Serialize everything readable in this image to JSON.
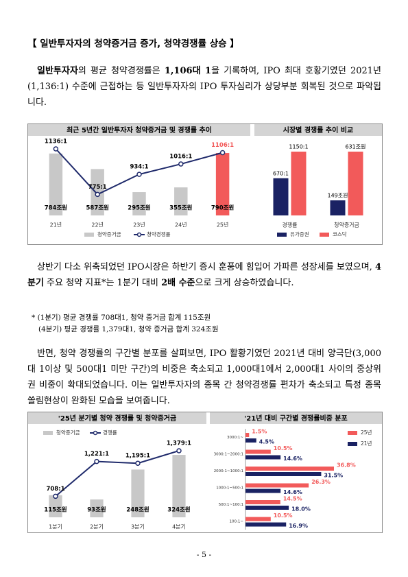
{
  "heading": "【 일반투자자의 청약증거금 증가, 청약경쟁률 상승 】",
  "paragraphs": [
    [
      {
        "text": "일반투자자",
        "bold": true
      },
      {
        "text": "의 평균 청약경쟁률은 "
      },
      {
        "text": "1,106대 1",
        "bold": true
      },
      {
        "text": "을 기록하여, IPO 최대 호황기였던 2021년(1,136:1) 수준에 근접하는 등 일반투자자의 IPO 투자심리가 상당부분 회복된 것으로 파악됩니다."
      }
    ],
    [
      {
        "text": "상반기 다소 위축되었던 IPO시장은 하반기 증시 훈풍에 힘입어 가파른 성장세를 보였으며, "
      },
      {
        "text": "4분기",
        "bold": true
      },
      {
        "text": " 주요 청약 지표*는 1분기 대비 "
      },
      {
        "text": "2배 수준",
        "bold": true
      },
      {
        "text": "으로 크게 상승하였습니다."
      }
    ],
    [
      {
        "text": "반면, 청약 경쟁률의 구간별 분포를 살펴보면, IPO 활황기였던 2021년 대비 양극단(3,000대 1이상 및 500대1 미만 구간)의 비중은 축소되고 1,000대1에서 2,000대1 사이의 중상위권 비중이 확대되었습니다. 이는 일반투자자의 종목 간 청약경쟁률 편차가 축소되고 특정 종목 쏠림현상이 완화된 모습을 보여줍니다."
      }
    ]
  ],
  "footnote": [
    "* (1분기) 평균 경쟁률 708대1, 청약 증거금 합계 115조원",
    "(4분기) 평균 경쟁률 1,379대1, 청약 증거금 합계 324조원"
  ],
  "charts": [
    {
      "type": "combo",
      "title": "최근 5년간 일반투자자 청약증거금 및 경쟁률 추이",
      "legend": "bottom",
      "categories": [
        "21년",
        "22년",
        "23년",
        "24년",
        "25년"
      ],
      "series": [
        {
          "name": "청약증거금",
          "type": "bar",
          "colors": [
            "#c8c8c8",
            "#c8c8c8",
            "#c8c8c8",
            "#c8c8c8",
            "#f25a5a"
          ],
          "values": [
            784,
            587,
            295,
            355,
            790
          ],
          "value_labels": [
            "784조원",
            "587조원",
            "295조원",
            "355조원",
            "790조원"
          ]
        },
        {
          "name": "청약경쟁률",
          "type": "line",
          "color": "#1f2a6b",
          "values": [
            1136,
            775,
            934,
            1016,
            1106
          ],
          "value_labels": [
            "1136:1",
            "775:1",
            "934:1",
            "1016:1",
            "1106:1"
          ],
          "label_colors": [
            "#000000",
            "#000000",
            "#000000",
            "#000000",
            "#f25a5a"
          ]
        }
      ]
    },
    {
      "type": "grouped_bar",
      "title": "시장별 경쟁률 추이 비교",
      "legend": "bottom",
      "categories": [
        "경쟁률",
        "청약증거금"
      ],
      "series": [
        {
          "name": "유가증권",
          "color": "#1a2263",
          "values": [
            670,
            149
          ],
          "value_labels": [
            "670:1",
            "149조원"
          ]
        },
        {
          "name": "코스닥",
          "color": "#f25a5a",
          "values": [
            1150,
            631
          ],
          "value_labels": [
            "1150:1",
            "631조원"
          ]
        }
      ]
    },
    {
      "type": "combo",
      "title": "'25년 분기별 청약 경쟁률 및 청약증거금",
      "legend": "top-left",
      "categories": [
        "1분기",
        "2분기",
        "3분기",
        "4분기"
      ],
      "series": [
        {
          "name": "청약증거금",
          "type": "bar",
          "colors": [
            "#c8c8c8",
            "#c8c8c8",
            "#c8c8c8",
            "#c8c8c8"
          ],
          "values": [
            115,
            93,
            248,
            324
          ],
          "value_labels": [
            "115조원",
            "93조원",
            "248조원",
            "324조원"
          ]
        },
        {
          "name": "경쟁률",
          "type": "line",
          "color": "#1f2a6b",
          "values": [
            708,
            1221,
            1195,
            1379
          ],
          "value_labels": [
            "708:1",
            "1,221:1",
            "1,195:1",
            "1,379:1"
          ],
          "label_colors": [
            "#000000",
            "#000000",
            "#000000",
            "#000000"
          ]
        }
      ]
    },
    {
      "type": "hbar",
      "title": "'21년 대비 구간별 경쟁률비중 분포",
      "legend": "right",
      "categories": [
        "3000:1~",
        "3000:1~2000:1",
        "2000:1~1000:1",
        "1000:1~500:1",
        "500:1~100:1",
        "100:1~"
      ],
      "series": [
        {
          "name": "25년",
          "color": "#f25a5a",
          "values": [
            1.5,
            10.5,
            36.8,
            26.3,
            14.5,
            10.5
          ],
          "value_labels": [
            "1.5%",
            "10.5%",
            "36.8%",
            "26.3%",
            "14.5%",
            "10.5%"
          ]
        },
        {
          "name": "21년",
          "color": "#1a2263",
          "values": [
            4.5,
            14.6,
            31.5,
            14.6,
            18.0,
            16.9
          ],
          "value_labels": [
            "4.5%",
            "14.6%",
            "31.5%",
            "14.6%",
            "18.0%",
            "16.9%"
          ]
        }
      ]
    }
  ],
  "page_number": "- 5 -"
}
